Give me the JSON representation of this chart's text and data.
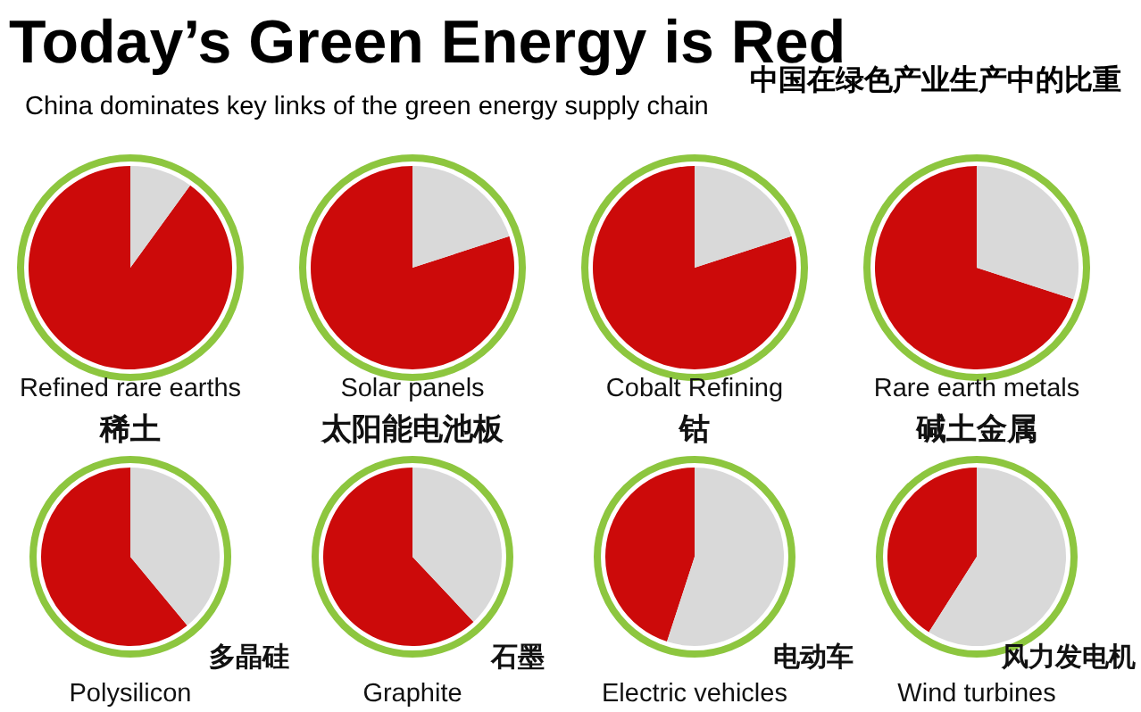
{
  "chart_data": [
    {
      "type": "pie",
      "title": "Refined rare earths",
      "subtitle": "稀土",
      "categories": [
        null,
        null
      ],
      "values": [
        90,
        10
      ],
      "colors": [
        "#cc0a0a",
        "#d9d9d9"
      ],
      "annotations": [
        "Today’s Green Energy is Red",
        "China dominates key links of the green energy supply chain",
        "中国在绿色产业生产中的比重"
      ]
    },
    {
      "type": "pie",
      "title": "Solar panels",
      "subtitle": "太阳能电池板",
      "categories": [
        null,
        null
      ],
      "values": [
        80,
        20
      ],
      "colors": [
        "#cc0a0a",
        "#d9d9d9"
      ]
    },
    {
      "type": "pie",
      "title": "Cobalt Refining",
      "subtitle": "钴",
      "categories": [
        null,
        null
      ],
      "values": [
        80,
        20
      ],
      "colors": [
        "#cc0a0a",
        "#d9d9d9"
      ]
    },
    {
      "type": "pie",
      "title": "Rare earth metals",
      "subtitle": "碱土金属",
      "categories": [
        null,
        null
      ],
      "values": [
        70,
        30
      ],
      "colors": [
        "#cc0a0a",
        "#d9d9d9"
      ]
    },
    {
      "type": "pie",
      "title": "Polysilicon",
      "subtitle": "多晶硅",
      "categories": [
        null,
        null
      ],
      "values": [
        61,
        39
      ],
      "colors": [
        "#cc0a0a",
        "#d9d9d9"
      ]
    },
    {
      "type": "pie",
      "title": "Graphite",
      "subtitle": "石墨",
      "categories": [
        null,
        null
      ],
      "values": [
        62,
        38
      ],
      "colors": [
        "#cc0a0a",
        "#d9d9d9"
      ]
    },
    {
      "type": "pie",
      "title": "Electric vehicles",
      "subtitle": "电动车",
      "categories": [
        null,
        null
      ],
      "values": [
        45,
        55
      ],
      "colors": [
        "#cc0a0a",
        "#d9d9d9"
      ]
    },
    {
      "type": "pie",
      "title": "Wind turbines",
      "subtitle": "风力发电机",
      "categories": [
        null,
        null
      ],
      "values": [
        41,
        59
      ],
      "colors": [
        "#cc0a0a",
        "#d9d9d9"
      ]
    }
  ]
}
